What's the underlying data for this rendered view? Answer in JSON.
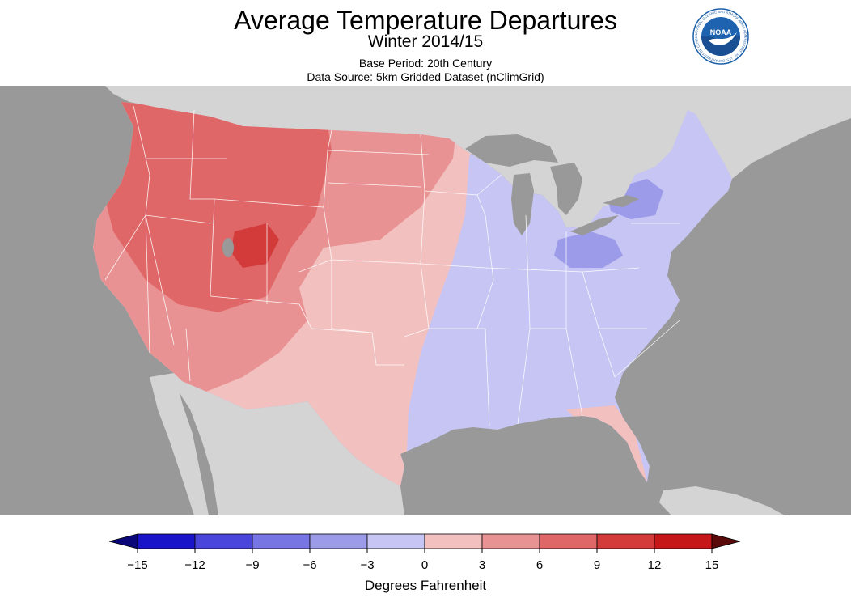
{
  "header": {
    "title": "Average Temperature Departures",
    "subtitle": "Winter 2014/15",
    "base_period": "Base Period: 20th Century",
    "data_source": "Data Source: 5km Gridded Dataset (nClimGrid)"
  },
  "logo": {
    "text": "NOAA",
    "ring_text": "NATIONAL OCEANIC AND ATMOSPHERIC ADMINISTRATION · U.S. DEPARTMENT OF COMMERCE"
  },
  "legend": {
    "units": "Degrees Fahrenheit",
    "ticks": [
      "−15",
      "−12",
      "−9",
      "−6",
      "−3",
      "0",
      "3",
      "6",
      "9",
      "12",
      "15"
    ],
    "colors": [
      "#1a14c8",
      "#4a46dc",
      "#7774e4",
      "#9c9be9",
      "#c6c5f3",
      "#f3c0c0",
      "#e99293",
      "#e06767",
      "#d33a3a",
      "#c51717"
    ],
    "low_extreme_color": "#0a0878",
    "high_extreme_color": "#5a0a0a"
  },
  "map_colors": {
    "ocean": "#999999",
    "land_outside": "#d4d4d4",
    "state_lines": "#ffffff"
  }
}
